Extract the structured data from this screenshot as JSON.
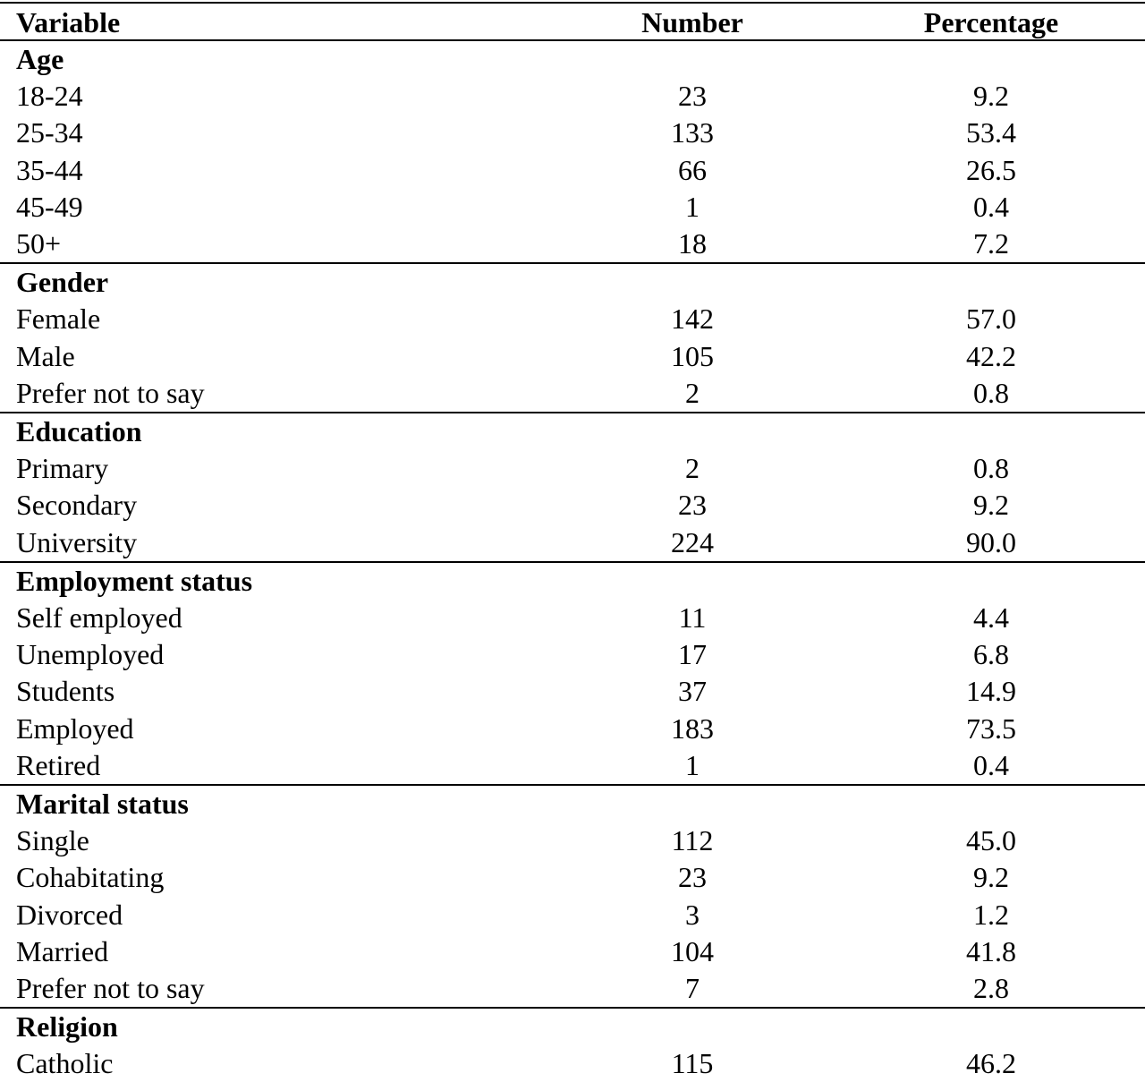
{
  "table": {
    "headers": [
      "Variable",
      "Number",
      "Percentage"
    ],
    "sections": [
      {
        "title": "Age",
        "rows": [
          [
            "18-24",
            "23",
            "9.2"
          ],
          [
            "25-34",
            "133",
            "53.4"
          ],
          [
            "35-44",
            "66",
            "26.5"
          ],
          [
            "45-49",
            "1",
            "0.4"
          ],
          [
            "50+",
            "18",
            "7.2"
          ]
        ]
      },
      {
        "title": "Gender",
        "rows": [
          [
            "Female",
            "142",
            "57.0"
          ],
          [
            "Male",
            "105",
            "42.2"
          ],
          [
            "Prefer not to say",
            "2",
            "0.8"
          ]
        ]
      },
      {
        "title": "Education",
        "rows": [
          [
            "Primary",
            "2",
            "0.8"
          ],
          [
            "Secondary",
            "23",
            "9.2"
          ],
          [
            "University",
            "224",
            "90.0"
          ]
        ]
      },
      {
        "title": "Employment status",
        "rows": [
          [
            "Self employed",
            "11",
            "4.4"
          ],
          [
            "Unemployed",
            "17",
            "6.8"
          ],
          [
            "Students",
            "37",
            "14.9"
          ],
          [
            "Employed",
            "183",
            "73.5"
          ],
          [
            "Retired",
            "1",
            "0.4"
          ]
        ]
      },
      {
        "title": "Marital status",
        "rows": [
          [
            "Single",
            "112",
            "45.0"
          ],
          [
            "Cohabitating",
            "23",
            "9.2"
          ],
          [
            "Divorced",
            "3",
            "1.2"
          ],
          [
            "Married",
            "104",
            "41.8"
          ],
          [
            "Prefer not to say",
            "7",
            "2.8"
          ]
        ]
      },
      {
        "title": "Religion",
        "rows": [
          [
            "Catholic",
            "115",
            "46.2"
          ]
        ]
      }
    ]
  }
}
